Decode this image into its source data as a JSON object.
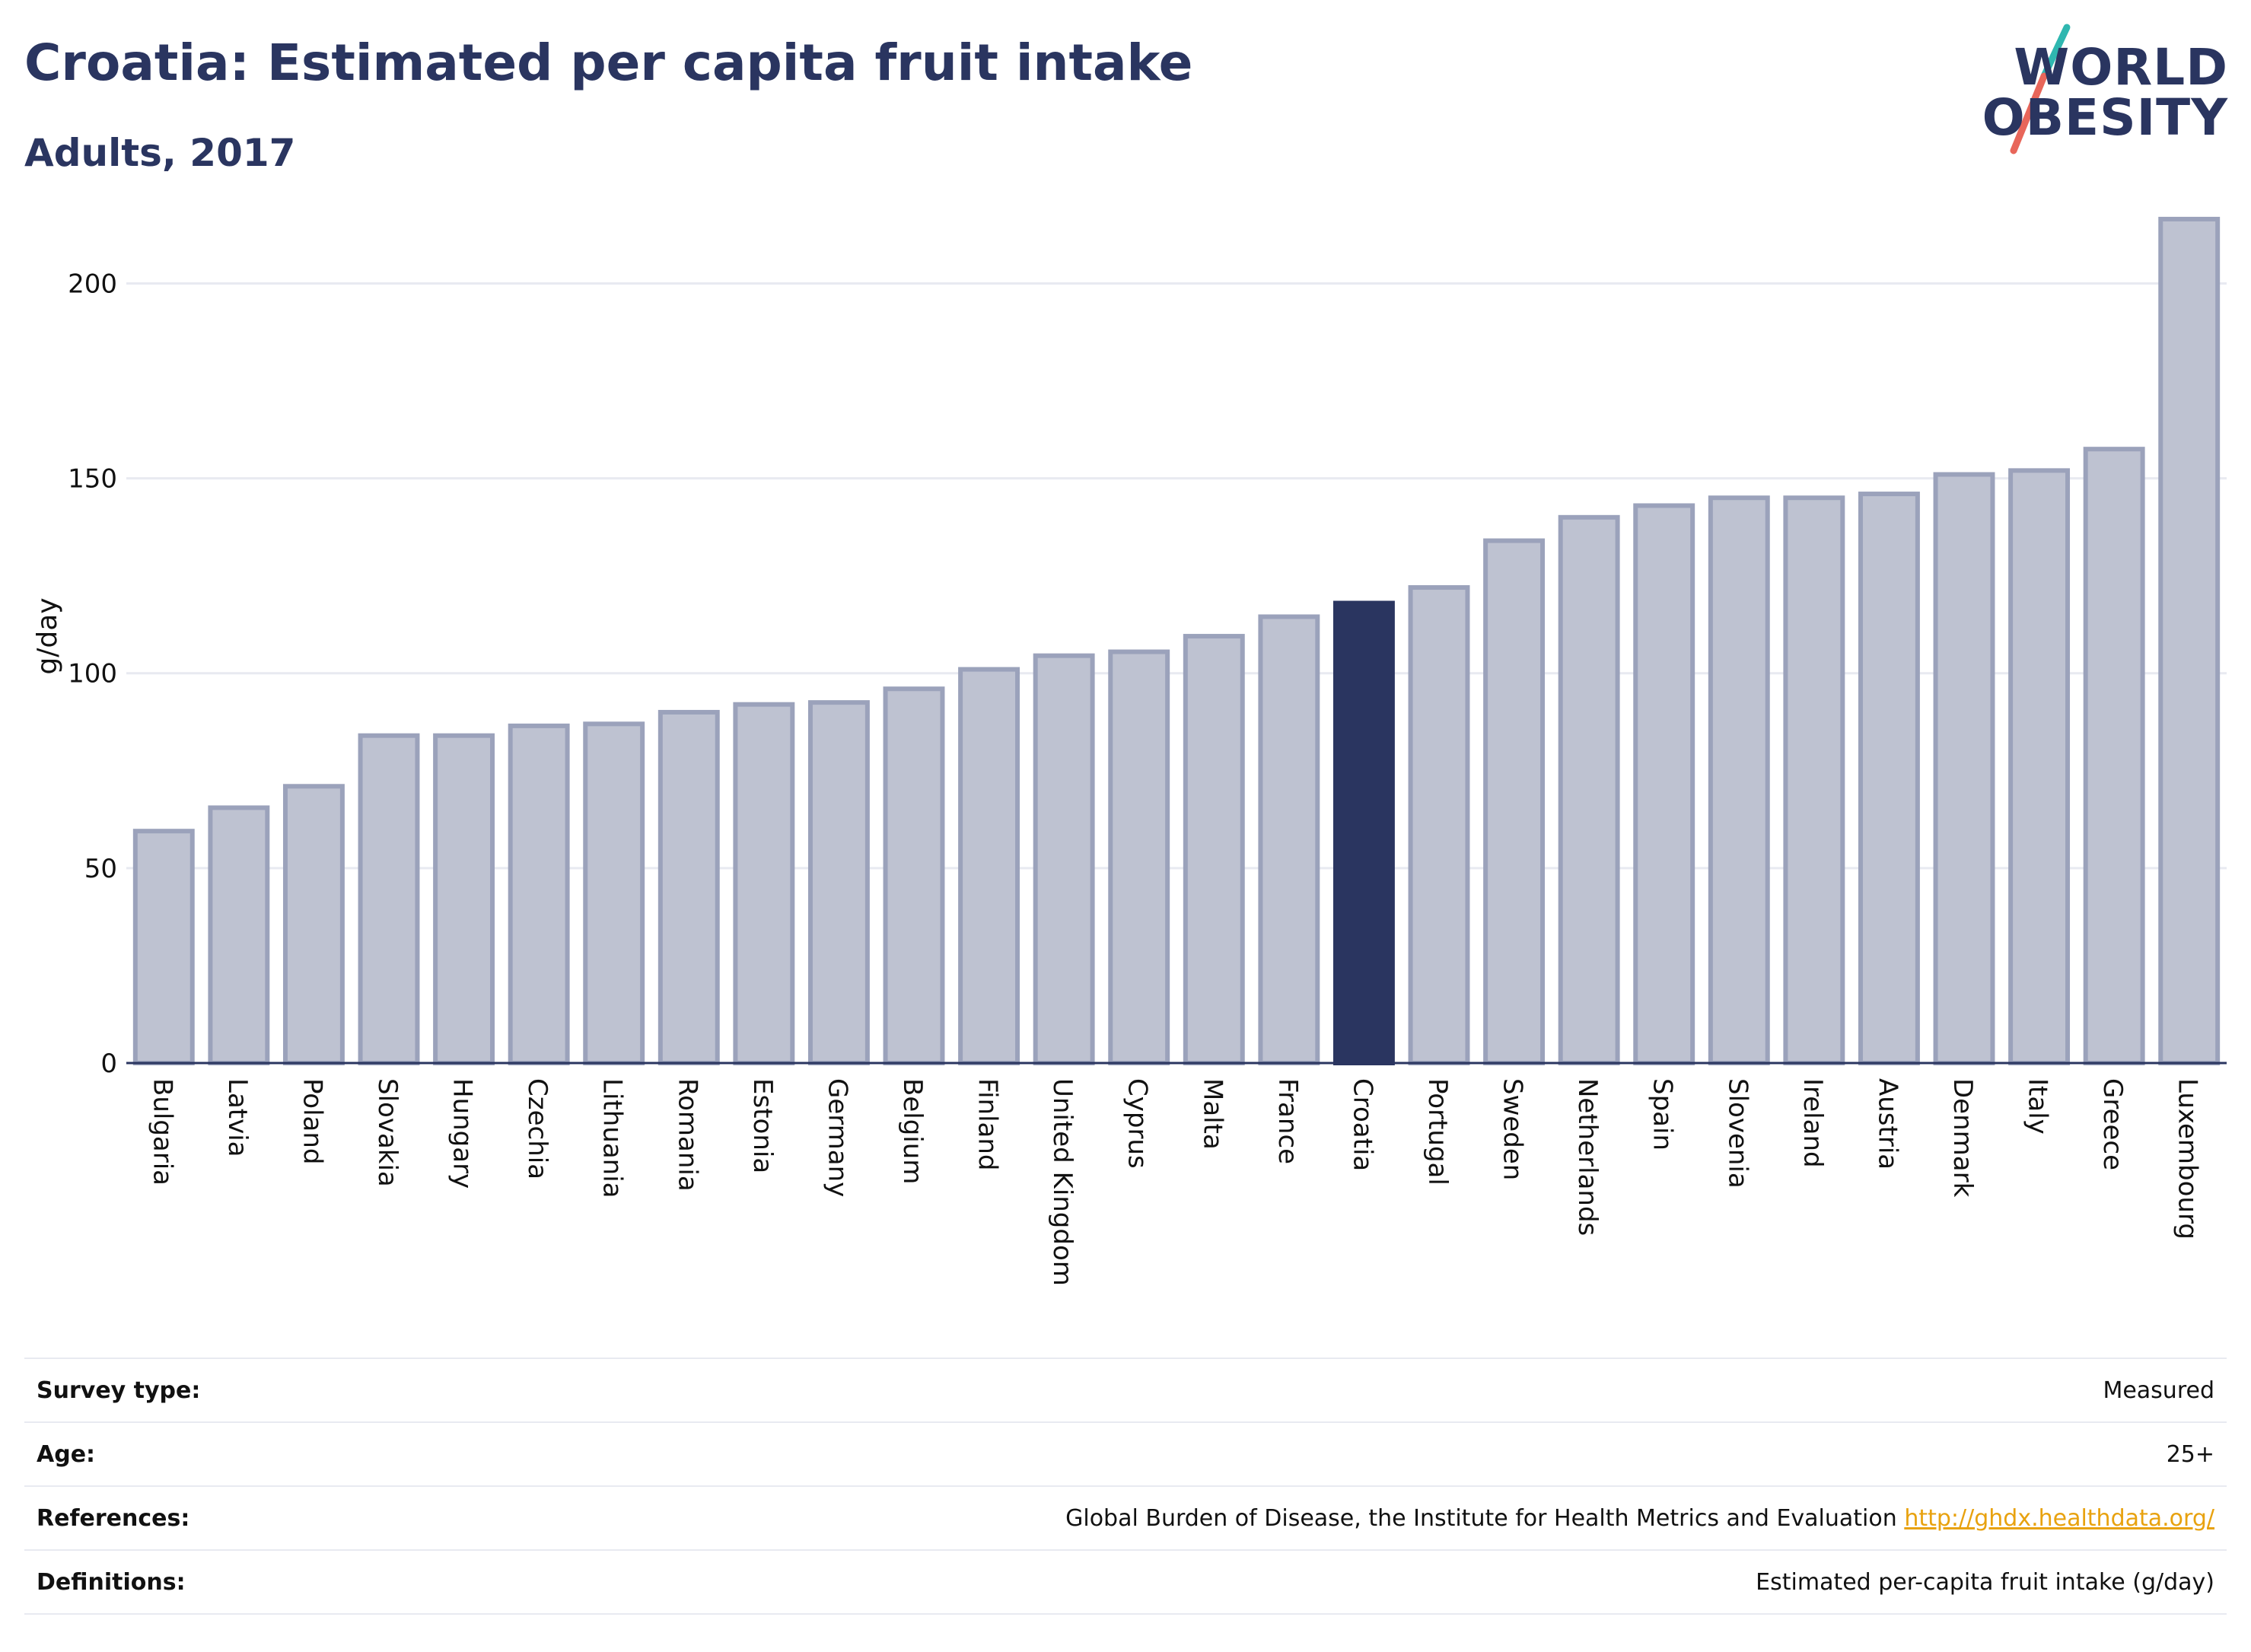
{
  "title": "Croatia: Estimated per capita fruit intake",
  "subtitle": "Adults, 2017",
  "logo": {
    "line1": "WORLD",
    "line2": "OBESITY",
    "slash_colors": [
      "#2fb7b0",
      "#e8665a"
    ],
    "icon": "slash-mark"
  },
  "chart_data": {
    "type": "bar",
    "ylabel": "g/day",
    "xlabel": "",
    "ylim": [
      0,
      220
    ],
    "yticks": [
      0,
      50,
      100,
      150,
      200
    ],
    "grid": true,
    "highlight": "Croatia",
    "colors": {
      "bar_fill": "#bec2d1",
      "bar_border": "#9ba2bb",
      "highlight_fill": "#2a3560",
      "grid": "#e8eaf1",
      "axis": "#2a3560"
    },
    "categories": [
      "Bulgaria",
      "Latvia",
      "Poland",
      "Slovakia",
      "Hungary",
      "Czechia",
      "Lithuania",
      "Romania",
      "Estonia",
      "Germany",
      "Belgium",
      "Finland",
      "United Kingdom",
      "Cyprus",
      "Malta",
      "France",
      "Croatia",
      "Portugal",
      "Sweden",
      "Netherlands",
      "Spain",
      "Slovenia",
      "Ireland",
      "Austria",
      "Denmark",
      "Italy",
      "Greece",
      "Luxembourg"
    ],
    "values": [
      59.5,
      65.5,
      71,
      84,
      84,
      86.5,
      87,
      90,
      92,
      92.5,
      96,
      101,
      104.5,
      105.5,
      109.5,
      114.5,
      118,
      122,
      134,
      140,
      143,
      145,
      145,
      146,
      151,
      152,
      157.5,
      216.5
    ]
  },
  "info": [
    {
      "label": "Survey type:",
      "value": "Measured"
    },
    {
      "label": "Age:",
      "value": "25+"
    },
    {
      "label": "References:",
      "value": "Global Burden of Disease, the Institute for Health Metrics and Evaluation",
      "link": "http://ghdx.healthdata.org/"
    },
    {
      "label": "Definitions:",
      "value": "Estimated per-capita fruit intake (g/day)"
    }
  ]
}
